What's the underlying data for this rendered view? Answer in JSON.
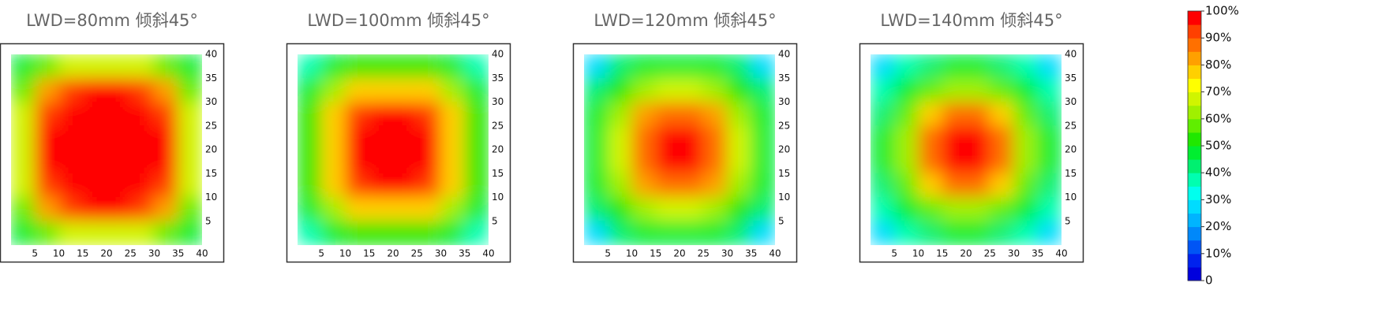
{
  "chart_data": [
    {
      "type": "contour",
      "title": "LWD=80mm 倾斜45°",
      "x": [
        2.5,
        7.5,
        12.5,
        17.5,
        22.5,
        27.5,
        32.5,
        37.5
      ],
      "y": [
        37.5,
        32.5,
        27.5,
        22.5,
        17.5,
        12.5,
        7.5,
        2.5
      ],
      "z": [
        [
          45,
          58,
          66,
          68,
          68,
          66,
          58,
          45
        ],
        [
          58,
          82,
          92,
          95,
          95,
          92,
          82,
          58
        ],
        [
          66,
          92,
          100,
          100,
          100,
          100,
          92,
          66
        ],
        [
          68,
          95,
          100,
          100,
          100,
          100,
          95,
          68
        ],
        [
          68,
          95,
          100,
          100,
          100,
          100,
          95,
          68
        ],
        [
          66,
          92,
          100,
          100,
          100,
          100,
          92,
          66
        ],
        [
          58,
          82,
          92,
          95,
          95,
          92,
          82,
          58
        ],
        [
          45,
          58,
          66,
          68,
          68,
          66,
          58,
          45
        ]
      ],
      "xlim": [
        0,
        40
      ],
      "ylim": [
        0,
        40
      ],
      "xticks": [
        5,
        10,
        15,
        20,
        25,
        30,
        35,
        40
      ],
      "yticks": [
        5,
        10,
        15,
        20,
        25,
        30,
        35,
        40
      ]
    },
    {
      "type": "contour",
      "title": "LWD=100mm 倾斜45°",
      "x": [
        2.5,
        7.5,
        12.5,
        17.5,
        22.5,
        27.5,
        32.5,
        37.5
      ],
      "y": [
        37.5,
        32.5,
        27.5,
        22.5,
        17.5,
        12.5,
        7.5,
        2.5
      ],
      "z": [
        [
          35,
          45,
          50,
          52,
          52,
          50,
          45,
          35
        ],
        [
          45,
          62,
          75,
          78,
          78,
          75,
          62,
          45
        ],
        [
          50,
          75,
          90,
          95,
          95,
          90,
          75,
          50
        ],
        [
          52,
          78,
          95,
          100,
          100,
          95,
          78,
          52
        ],
        [
          52,
          78,
          95,
          100,
          100,
          95,
          78,
          52
        ],
        [
          50,
          75,
          90,
          95,
          95,
          90,
          75,
          50
        ],
        [
          45,
          62,
          75,
          78,
          78,
          75,
          62,
          45
        ],
        [
          35,
          45,
          50,
          52,
          52,
          50,
          45,
          35
        ]
      ],
      "xlim": [
        0,
        40
      ],
      "ylim": [
        0,
        40
      ],
      "xticks": [
        5,
        10,
        15,
        20,
        25,
        30,
        35,
        40
      ],
      "yticks": [
        5,
        10,
        15,
        20,
        25,
        30,
        35,
        40
      ]
    },
    {
      "type": "contour",
      "title": "LWD=120mm 倾斜45°",
      "x": [
        2.5,
        7.5,
        12.5,
        17.5,
        22.5,
        27.5,
        32.5,
        37.5
      ],
      "y": [
        37.5,
        32.5,
        27.5,
        22.5,
        17.5,
        12.5,
        7.5,
        2.5
      ],
      "z": [
        [
          28,
          40,
          46,
          48,
          48,
          46,
          40,
          28
        ],
        [
          40,
          52,
          62,
          66,
          66,
          62,
          52,
          40
        ],
        [
          46,
          62,
          80,
          88,
          88,
          80,
          62,
          46
        ],
        [
          48,
          66,
          88,
          100,
          100,
          88,
          66,
          48
        ],
        [
          48,
          66,
          88,
          100,
          100,
          88,
          66,
          48
        ],
        [
          46,
          62,
          80,
          88,
          88,
          80,
          62,
          46
        ],
        [
          40,
          52,
          62,
          66,
          66,
          62,
          52,
          40
        ],
        [
          28,
          40,
          46,
          48,
          48,
          46,
          40,
          28
        ]
      ],
      "xlim": [
        0,
        40
      ],
      "ylim": [
        0,
        40
      ],
      "xticks": [
        5,
        10,
        15,
        20,
        25,
        30,
        35,
        40
      ],
      "yticks": [
        5,
        10,
        15,
        20,
        25,
        30,
        35,
        40
      ]
    },
    {
      "type": "contour",
      "title": "LWD=140mm 倾斜45°",
      "x": [
        2.5,
        7.5,
        12.5,
        17.5,
        22.5,
        27.5,
        32.5,
        37.5
      ],
      "y": [
        37.5,
        32.5,
        27.5,
        22.5,
        17.5,
        12.5,
        7.5,
        2.5
      ],
      "z": [
        [
          25,
          36,
          42,
          45,
          45,
          42,
          36,
          25
        ],
        [
          36,
          48,
          57,
          62,
          62,
          57,
          48,
          36
        ],
        [
          42,
          57,
          75,
          85,
          85,
          75,
          57,
          42
        ],
        [
          45,
          62,
          85,
          98,
          98,
          85,
          62,
          45
        ],
        [
          45,
          62,
          85,
          98,
          98,
          85,
          62,
          45
        ],
        [
          42,
          57,
          75,
          85,
          85,
          75,
          57,
          42
        ],
        [
          36,
          48,
          57,
          62,
          62,
          57,
          48,
          36
        ],
        [
          25,
          36,
          42,
          45,
          45,
          42,
          36,
          25
        ]
      ],
      "xlim": [
        0,
        40
      ],
      "ylim": [
        0,
        40
      ],
      "xticks": [
        5,
        10,
        15,
        20,
        25,
        30,
        35,
        40
      ],
      "yticks": [
        5,
        10,
        15,
        20,
        25,
        30,
        35,
        40
      ]
    }
  ],
  "colorbar": {
    "lim": [
      0,
      100
    ],
    "step": 5,
    "colors": [
      "#0000dd",
      "#0022ee",
      "#0055f5",
      "#0088fa",
      "#00b4ff",
      "#00dcff",
      "#00ffee",
      "#00ffb0",
      "#00f070",
      "#00ee30",
      "#20e800",
      "#60ee00",
      "#a0f000",
      "#d0f500",
      "#ffff00",
      "#ffd000",
      "#ffa000",
      "#ff7000",
      "#ff4000",
      "#ff0000"
    ],
    "ticks": [
      0,
      {
        "value": 10,
        "label": "10%"
      },
      {
        "value": 20,
        "label": "20%"
      },
      {
        "value": 30,
        "label": "30%"
      },
      {
        "value": 40,
        "label": "40%"
      },
      {
        "value": 50,
        "label": "50%"
      },
      {
        "value": 60,
        "label": "60%"
      },
      {
        "value": 70,
        "label": "70%"
      },
      {
        "value": 80,
        "label": "80%"
      },
      {
        "value": 90,
        "label": "90%"
      },
      {
        "value": 100,
        "label": "100%"
      }
    ]
  }
}
